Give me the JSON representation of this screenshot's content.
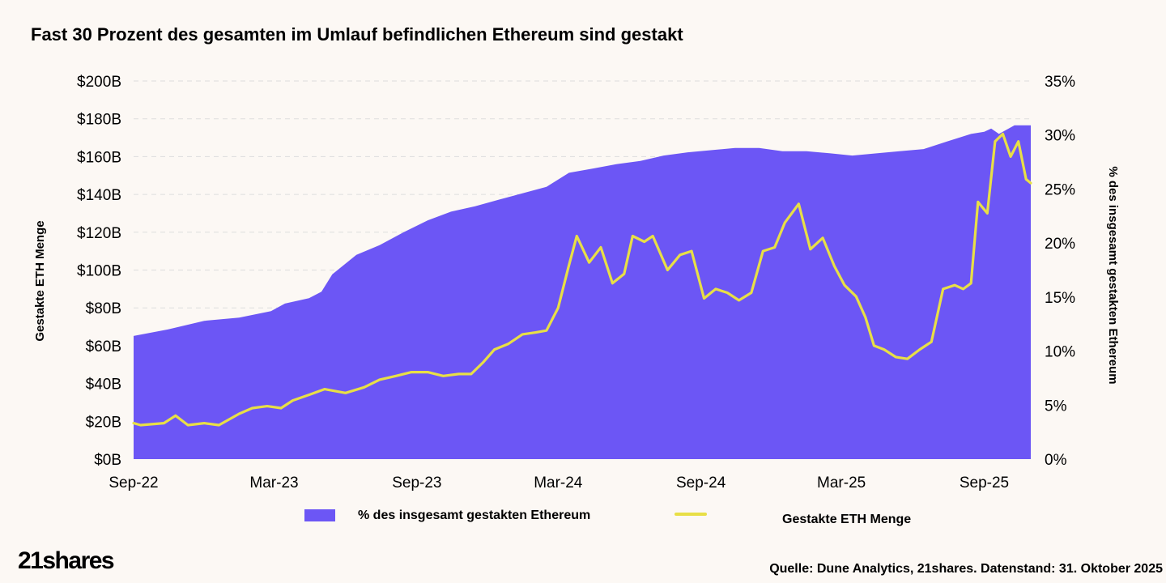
{
  "title": "Fast 30 Prozent des gesamten im Umlauf befindlichen Ethereum sind gestakt",
  "logo": "21shares",
  "source": "Quelle: Dune Analytics, 21shares. Datenstand: 31. Oktober 2025",
  "colors": {
    "area": "#6c56f5",
    "line": "#e8df46",
    "background": "#fcf8f4",
    "grid": "#dddddd"
  },
  "chart_data": {
    "type": "area",
    "x_start": "2022-09-01",
    "x_end": "2025-10-31",
    "x_tick_labels": [
      "Sep-22",
      "Mar-23",
      "Sep-23",
      "Mar-24",
      "Sep-24",
      "Mar-25",
      "Sep-25"
    ],
    "x_ticks": [
      "2022-09-01",
      "2023-03-01",
      "2023-09-01",
      "2024-03-01",
      "2024-09-01",
      "2025-03-01",
      "2025-09-01"
    ],
    "y_left": {
      "label": "Gestakte ETH Menge",
      "range": [
        0,
        200
      ],
      "ticks": [
        0,
        20,
        40,
        60,
        80,
        100,
        120,
        140,
        160,
        180,
        200
      ],
      "tick_labels": [
        "$0B",
        "$20B",
        "$40B",
        "$60B",
        "$80B",
        "$100B",
        "$120B",
        "$140B",
        "$160B",
        "$180B",
        "$200B"
      ]
    },
    "y_right": {
      "label": "% des insgesamt gestakten Ethereum",
      "range": [
        0,
        35
      ],
      "ticks": [
        0,
        5,
        10,
        15,
        20,
        25,
        30,
        35
      ],
      "tick_labels": [
        "0%",
        "5%",
        "10%",
        "15%",
        "20%",
        "25%",
        "30%",
        "35%"
      ]
    },
    "grid": "horizontal-dashed",
    "legend_position": "bottom",
    "series": [
      {
        "name": "% des insgesamt gestakten Ethereum",
        "kind": "area",
        "axis": "right",
        "x": [
          "2022-09-01",
          "2022-10-15",
          "2022-12-01",
          "2023-01-15",
          "2023-02-25",
          "2023-03-15",
          "2023-04-15",
          "2023-05-01",
          "2023-05-15",
          "2023-06-15",
          "2023-07-15",
          "2023-08-15",
          "2023-09-15",
          "2023-10-15",
          "2023-11-15",
          "2023-12-15",
          "2024-01-15",
          "2024-02-15",
          "2024-03-15",
          "2024-04-15",
          "2024-05-15",
          "2024-06-15",
          "2024-07-15",
          "2024-08-15",
          "2024-09-15",
          "2024-10-15",
          "2024-11-15",
          "2024-12-15",
          "2025-01-15",
          "2025-02-15",
          "2025-03-15",
          "2025-04-15",
          "2025-05-15",
          "2025-06-15",
          "2025-07-15",
          "2025-08-15",
          "2025-09-01",
          "2025-09-10",
          "2025-09-20",
          "2025-10-10",
          "2025-10-31"
        ],
        "values": [
          11.4,
          12.0,
          12.8,
          13.1,
          13.7,
          14.4,
          14.9,
          15.5,
          17.1,
          18.9,
          19.8,
          21.0,
          22.1,
          22.9,
          23.4,
          24.0,
          24.6,
          25.2,
          26.5,
          26.9,
          27.3,
          27.6,
          28.1,
          28.4,
          28.6,
          28.8,
          28.8,
          28.5,
          28.5,
          28.3,
          28.1,
          28.3,
          28.5,
          28.7,
          29.4,
          30.1,
          30.3,
          30.6,
          30.1,
          30.9,
          30.9
        ]
      },
      {
        "name": "Gestakte ETH Menge",
        "kind": "line",
        "axis": "left",
        "x": [
          "2022-09-01",
          "2022-09-10",
          "2022-10-10",
          "2022-10-25",
          "2022-11-10",
          "2022-12-01",
          "2022-12-20",
          "2023-01-15",
          "2023-02-01",
          "2023-02-20",
          "2023-03-10",
          "2023-03-25",
          "2023-04-15",
          "2023-05-05",
          "2023-06-01",
          "2023-06-25",
          "2023-07-15",
          "2023-08-05",
          "2023-08-25",
          "2023-09-15",
          "2023-10-05",
          "2023-10-25",
          "2023-11-10",
          "2023-11-25",
          "2023-12-10",
          "2023-12-28",
          "2024-01-15",
          "2024-02-01",
          "2024-02-15",
          "2024-03-01",
          "2024-03-14",
          "2024-03-25",
          "2024-04-10",
          "2024-04-25",
          "2024-05-10",
          "2024-05-25",
          "2024-06-05",
          "2024-06-20",
          "2024-07-01",
          "2024-07-20",
          "2024-08-05",
          "2024-08-20",
          "2024-09-05",
          "2024-09-20",
          "2024-10-05",
          "2024-10-20",
          "2024-11-05",
          "2024-11-20",
          "2024-12-05",
          "2024-12-18",
          "2025-01-05",
          "2025-01-20",
          "2025-02-05",
          "2025-02-20",
          "2025-03-05",
          "2025-03-20",
          "2025-04-01",
          "2025-04-12",
          "2025-04-25",
          "2025-05-10",
          "2025-05-25",
          "2025-06-10",
          "2025-06-25",
          "2025-07-10",
          "2025-07-25",
          "2025-08-05",
          "2025-08-15",
          "2025-08-24",
          "2025-09-05",
          "2025-09-15",
          "2025-09-25",
          "2025-10-05",
          "2025-10-15",
          "2025-10-25",
          "2025-10-31"
        ],
        "values": [
          19,
          18,
          19,
          23,
          18,
          19,
          18,
          24,
          27,
          28,
          27,
          31,
          34,
          37,
          35,
          38,
          42,
          44,
          46,
          46,
          44,
          45,
          45,
          51,
          58,
          61,
          66,
          67,
          68,
          80,
          101,
          118,
          104,
          112,
          93,
          98,
          118,
          115,
          118,
          100,
          108,
          110,
          85,
          90,
          88,
          84,
          88,
          110,
          112,
          125,
          135,
          111,
          117,
          102,
          92,
          86,
          75,
          60,
          58,
          54,
          53,
          58,
          62,
          90,
          92,
          90,
          93,
          136,
          130,
          168,
          172,
          160,
          168,
          148,
          146
        ]
      }
    ]
  }
}
